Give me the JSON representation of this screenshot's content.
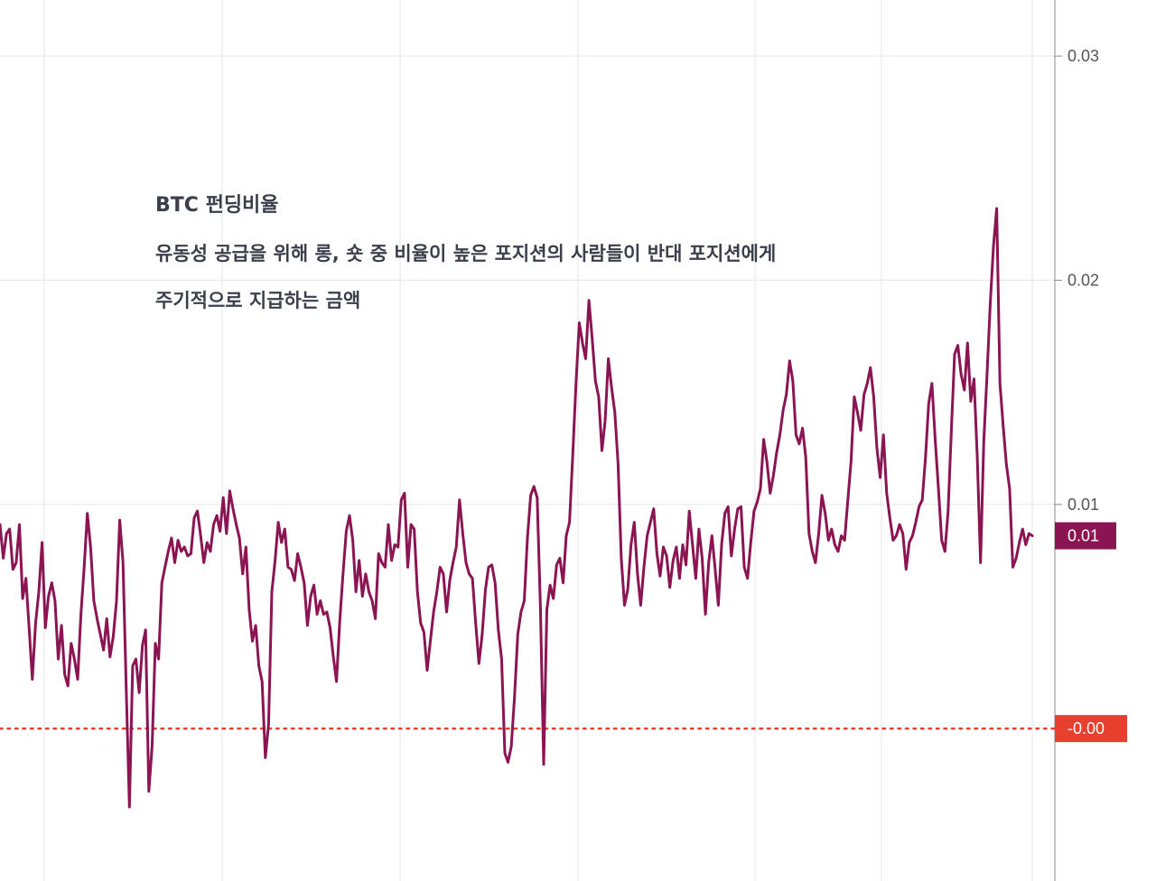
{
  "chart_data": {
    "type": "line",
    "title": "BTC 펀딩비율",
    "annotations": [
      "유동성 공급을 위해 롱, 숏 중 비율이 높은 포지션의 사람들이 반대 포지션에게",
      "주기적으로 지급하는 금액"
    ],
    "xlabel": "",
    "ylabel": "",
    "y_ticks": [
      "0.03",
      "0.02",
      "0.01"
    ],
    "y_tick_values": [
      0.03,
      0.02,
      0.01
    ],
    "ylim": [
      -0.0068,
      0.0325
    ],
    "grid": true,
    "reference_line": {
      "value": 0.0,
      "label": "-0.00",
      "style": "dotted",
      "color": "#e8402f"
    },
    "last_value": {
      "value": 0.0086,
      "label": "0.01",
      "color": "#8b1453"
    },
    "series": [
      {
        "color": "#8b1453",
        "values": [
          0.0091,
          0.0076,
          0.0087,
          0.0089,
          0.0071,
          0.0074,
          0.0091,
          0.0058,
          0.0067,
          0.0045,
          0.0022,
          0.0047,
          0.0061,
          0.0083,
          0.0045,
          0.0059,
          0.0065,
          0.0057,
          0.0031,
          0.0046,
          0.0024,
          0.0019,
          0.0038,
          0.0031,
          0.0022,
          0.0051,
          0.0072,
          0.0096,
          0.0081,
          0.0057,
          0.0049,
          0.0042,
          0.0035,
          0.0049,
          0.0032,
          0.0041,
          0.0057,
          0.0093,
          0.0074,
          0.0019,
          -0.0035,
          0.0028,
          0.0031,
          0.0016,
          0.0037,
          0.0044,
          -0.0028,
          -0.0008,
          0.0038,
          0.0031,
          0.0065,
          0.0072,
          0.0079,
          0.0085,
          0.0074,
          0.0084,
          0.0079,
          0.0081,
          0.0077,
          0.0078,
          0.0094,
          0.0097,
          0.0086,
          0.0074,
          0.0083,
          0.0079,
          0.0091,
          0.0095,
          0.0088,
          0.0103,
          0.0087,
          0.0106,
          0.0098,
          0.0091,
          0.0085,
          0.0069,
          0.0081,
          0.0053,
          0.0039,
          0.0046,
          0.0028,
          0.0021,
          -0.0013,
          0.0002,
          0.0061,
          0.0075,
          0.0092,
          0.0083,
          0.0089,
          0.0072,
          0.0071,
          0.0066,
          0.0078,
          0.0072,
          0.0065,
          0.0046,
          0.0059,
          0.0064,
          0.0051,
          0.0057,
          0.0051,
          0.0052,
          0.0045,
          0.0032,
          0.0021,
          0.0048,
          0.0069,
          0.0088,
          0.0095,
          0.0084,
          0.0061,
          0.0075,
          0.0059,
          0.0069,
          0.0061,
          0.0057,
          0.0049,
          0.0078,
          0.0074,
          0.0072,
          0.0091,
          0.0075,
          0.0082,
          0.0081,
          0.0102,
          0.0105,
          0.0072,
          0.0091,
          0.0089,
          0.0061,
          0.0047,
          0.0043,
          0.0026,
          0.0039,
          0.0052,
          0.0061,
          0.0072,
          0.0069,
          0.0052,
          0.0066,
          0.0074,
          0.0081,
          0.0102,
          0.0087,
          0.0074,
          0.0069,
          0.0067,
          0.0047,
          0.0029,
          0.0042,
          0.0062,
          0.0072,
          0.0073,
          0.0065,
          0.0044,
          0.0031,
          -0.0011,
          -0.0015,
          -0.0008,
          0.0014,
          0.0042,
          0.0052,
          0.0057,
          0.0085,
          0.0104,
          0.0108,
          0.0103,
          0.0054,
          -0.0016,
          0.0053,
          0.0064,
          0.0058,
          0.0073,
          0.0076,
          0.0065,
          0.0086,
          0.0092,
          0.0122,
          0.0154,
          0.0181,
          0.0172,
          0.0165,
          0.0191,
          0.0174,
          0.0155,
          0.0148,
          0.0124,
          0.0137,
          0.0165,
          0.0152,
          0.0141,
          0.0118,
          0.0076,
          0.0055,
          0.0062,
          0.0082,
          0.0092,
          0.0069,
          0.0055,
          0.0072,
          0.0086,
          0.0092,
          0.0098,
          0.0078,
          0.0068,
          0.0081,
          0.0077,
          0.0063,
          0.0075,
          0.0081,
          0.0067,
          0.0082,
          0.0073,
          0.0097,
          0.0082,
          0.0067,
          0.0089,
          0.0076,
          0.0051,
          0.0074,
          0.0086,
          0.0071,
          0.0055,
          0.0082,
          0.0096,
          0.0099,
          0.0077,
          0.0089,
          0.0098,
          0.0099,
          0.0072,
          0.0067,
          0.0083,
          0.0097,
          0.0101,
          0.0107,
          0.0129,
          0.0119,
          0.0105,
          0.0113,
          0.0123,
          0.0131,
          0.0142,
          0.0149,
          0.0164,
          0.0155,
          0.0131,
          0.0127,
          0.0134,
          0.0121,
          0.0087,
          0.0079,
          0.0074,
          0.0087,
          0.0104,
          0.0096,
          0.0084,
          0.0089,
          0.0082,
          0.0079,
          0.0086,
          0.0084,
          0.0102,
          0.0119,
          0.0148,
          0.0141,
          0.0133,
          0.0149,
          0.0154,
          0.0161,
          0.0148,
          0.0125,
          0.0112,
          0.0131,
          0.0105,
          0.0094,
          0.0084,
          0.0086,
          0.0091,
          0.0087,
          0.0071,
          0.0083,
          0.0086,
          0.0092,
          0.0099,
          0.0102,
          0.0121,
          0.0145,
          0.0154,
          0.0129,
          0.0107,
          0.0084,
          0.0079,
          0.0097,
          0.0133,
          0.0167,
          0.0171,
          0.0158,
          0.0151,
          0.0172,
          0.0146,
          0.0156,
          0.0121,
          0.0074,
          0.0128,
          0.0157,
          0.0189,
          0.0215,
          0.0232,
          0.0154,
          0.0135,
          0.0118,
          0.0107,
          0.0072,
          0.0076,
          0.0083,
          0.0089,
          0.0082,
          0.0087,
          0.0086
        ]
      }
    ]
  }
}
